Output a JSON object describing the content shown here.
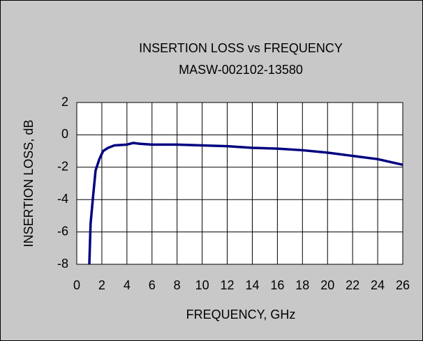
{
  "chart_data": {
    "type": "line",
    "title": "INSERTION LOSS vs FREQUENCY",
    "subtitle": "MASW-002102-13580",
    "x_label": "FREQUENCY, GHz",
    "y_label": "INSERTION LOSS, dB",
    "x": [
      1,
      1.1,
      1.3,
      1.5,
      1.8,
      2.1,
      2.5,
      3,
      4,
      4.5,
      5,
      6,
      8,
      10,
      12,
      14,
      16,
      18,
      20,
      22,
      24,
      26
    ],
    "series": [
      {
        "name": "MASW-002102-13580",
        "color": "#000080",
        "values": [
          -8,
          -5.5,
          -3.8,
          -2.2,
          -1.5,
          -1,
          -0.8,
          -0.65,
          -0.6,
          -0.5,
          -0.55,
          -0.6,
          -0.6,
          -0.65,
          -0.7,
          -0.8,
          -0.85,
          -0.95,
          -1.1,
          -1.3,
          -1.5,
          -1.85
        ]
      }
    ],
    "xlim": [
      0,
      26
    ],
    "xticks": [
      0,
      2,
      4,
      6,
      8,
      10,
      12,
      14,
      16,
      18,
      20,
      22,
      24,
      26
    ],
    "ylim": [
      -8,
      2
    ],
    "yticks": [
      -8,
      -6,
      -4,
      -2,
      0,
      2
    ],
    "grid": true
  }
}
